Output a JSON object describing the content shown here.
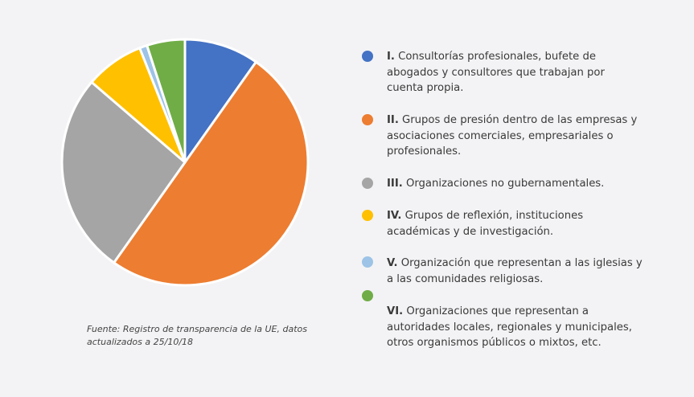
{
  "chart_data": {
    "type": "pie",
    "slices": [
      {
        "label": "I.",
        "value": 9.8,
        "color": "#4472c4"
      },
      {
        "label": "II.",
        "value": 50.0,
        "color": "#ed7d31"
      },
      {
        "label": "III.",
        "value": 26.5,
        "color": "#a5a5a5"
      },
      {
        "label": "IV.",
        "value": 7.7,
        "color": "#ffc000"
      },
      {
        "label": "V.",
        "value": 1.0,
        "color": "#9dc3e6"
      },
      {
        "label": "VI.",
        "value": 5.0,
        "color": "#70ad47"
      }
    ]
  },
  "legend": [
    {
      "num": "I.",
      "text": "Consultorías profesionales, bufete de abogados y consultores que trabajan por cuenta propia.",
      "color": "#4472c4"
    },
    {
      "num": "II.",
      "text": "Grupos de presión dentro de las empresas y asociaciones comerciales, empresariales o profesionales.",
      "color": "#ed7d31"
    },
    {
      "num": "III.",
      "text": "Organizaciones no gubernamentales.",
      "color": "#a5a5a5"
    },
    {
      "num": "IV.",
      "text": "Grupos de reflexión, instituciones académicas y de investigación.",
      "color": "#ffc000"
    },
    {
      "num": "V.",
      "text": "Organización que representan a las iglesias y a las comunidades religiosas.",
      "color": "#9dc3e6"
    },
    {
      "num": "VI.",
      "text": "Organizaciones que representan a autoridades locales, regionales y municipales, otros organismos públicos o mixtos, etc.",
      "color": "#70ad47"
    }
  ],
  "source": "Fuente: Registro de transparencia de la UE, datos actualizados a 25/10/18"
}
